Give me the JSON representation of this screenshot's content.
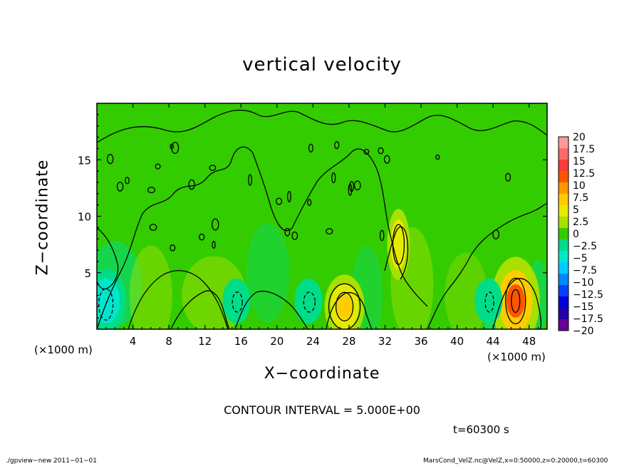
{
  "chart_data": {
    "type": "heatmap",
    "title": "vertical velocity",
    "xlabel": "X−coordinate",
    "ylabel": "Z−coordinate",
    "x_unit_label": "(×1000 m)",
    "xlim": [
      0,
      50
    ],
    "ylim": [
      0,
      20
    ],
    "x_ticks": [
      4,
      8,
      12,
      16,
      20,
      24,
      28,
      32,
      36,
      40,
      44,
      48
    ],
    "y_ticks": [
      5,
      10,
      15
    ],
    "contour_interval_label": "CONTOUR INTERVAL = 5.000E+00",
    "time_label": "t=60300 s",
    "colorbar": {
      "levels": [
        "20",
        "17.5",
        "15",
        "12.5",
        "10",
        "7.5",
        "5",
        "2.5",
        "0",
        "−2.5",
        "−5",
        "−7.5",
        "−10",
        "−12.5",
        "−15",
        "−17.5",
        "−20"
      ],
      "colors": [
        "#ff9a9a",
        "#ff6a6a",
        "#ff3a3a",
        "#ff5500",
        "#ff9900",
        "#ffcc00",
        "#e6ea00",
        "#a8e000",
        "#33cc00",
        "#00dd88",
        "#00e6cc",
        "#00ccff",
        "#0088ff",
        "#0044ff",
        "#0000dd",
        "#2200aa",
        "#660099"
      ]
    },
    "features": [
      {
        "x": 27.5,
        "z": 2.0,
        "value": 7.5
      },
      {
        "x": 33.5,
        "z": 7.5,
        "value": 5
      },
      {
        "x": 46.5,
        "z": 2.5,
        "value": 12.5
      },
      {
        "x": 1.0,
        "z": 2.5,
        "value": -5
      },
      {
        "x": 15.5,
        "z": 2.5,
        "value": -2.5
      },
      {
        "x": 23.5,
        "z": 2.5,
        "value": -2.5
      },
      {
        "x": 43.5,
        "z": 2.5,
        "value": -2.5
      }
    ]
  },
  "footer": {
    "left": "./gpview−new  2011−01−01",
    "right": "MarsCond_VelZ.nc@VelZ,x=0:50000,z=0:20000,t=60300"
  }
}
